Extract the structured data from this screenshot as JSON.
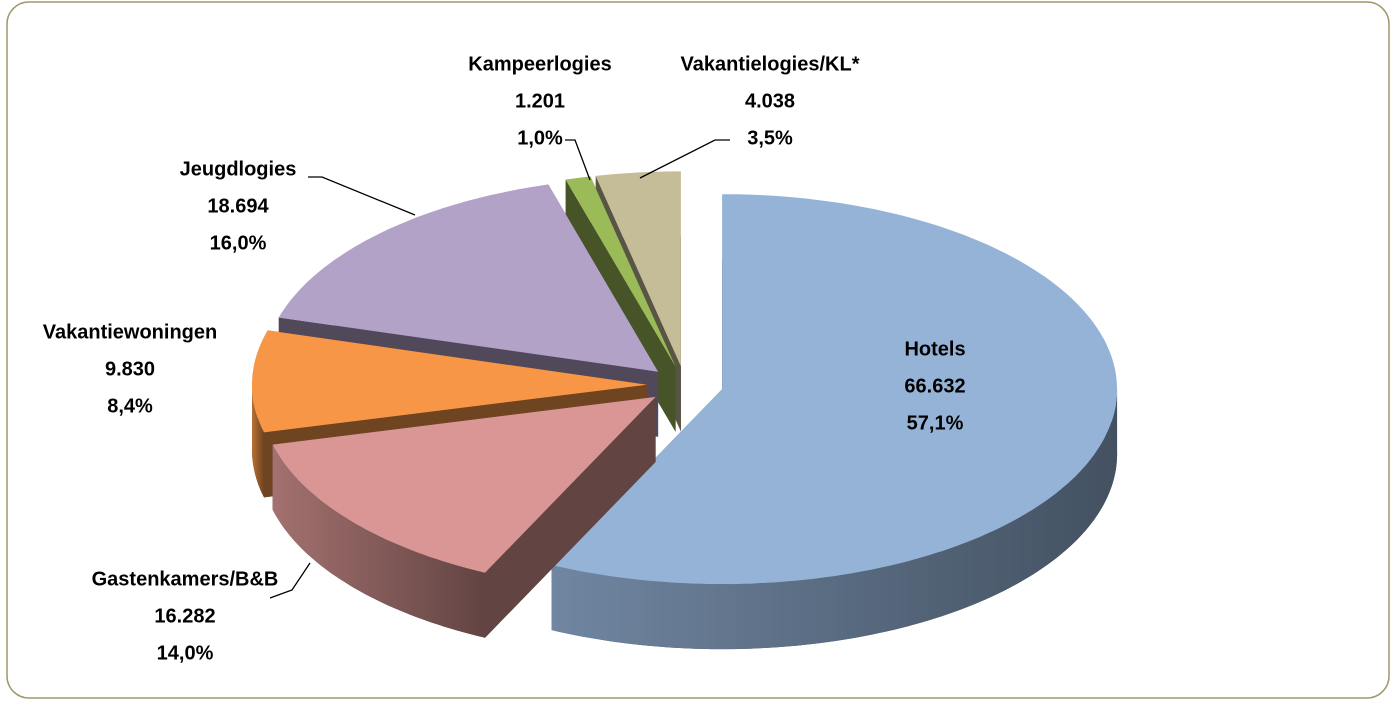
{
  "chart_data": {
    "type": "pie3d",
    "categories": [
      "Hotels",
      "Gastenkamers/B&B",
      "Vakantiewoningen",
      "Jeugdlogies",
      "Kampeerlogies",
      "Vakantielogies/KL*"
    ],
    "values": [
      66632,
      16282,
      9830,
      18694,
      1201,
      4038
    ],
    "value_labels": [
      "66.632",
      "16.282",
      "9.830",
      "18.694",
      "1.201",
      "4.038"
    ],
    "percentages": [
      57.1,
      14.0,
      8.4,
      16.0,
      1.0,
      3.5
    ],
    "percentage_labels": [
      "57,1%",
      "14,0%",
      "8,4%",
      "16,0%",
      "1,0%",
      "3,5%"
    ],
    "colors": [
      "#95b3d7",
      "#d99694",
      "#f79646",
      "#b3a2c7",
      "#9bbb59",
      "#c4bd97"
    ]
  }
}
